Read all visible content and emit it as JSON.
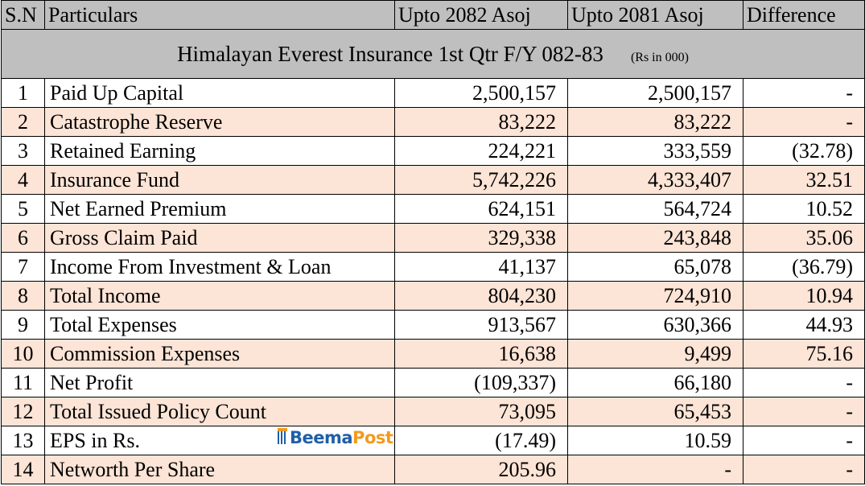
{
  "title": "Himalayan Everest Insurance 1st Qtr F/Y 082-83",
  "unit_note": "(Rs in 000)",
  "logo": [
    "Beema",
    "Post"
  ],
  "table": {
    "header": [
      "S.N",
      "Particulars",
      "Upto 2082 Asoj",
      "Upto 2081 Asoj",
      "Difference"
    ],
    "rows": [
      [
        "1",
        "Paid Up Capital",
        "2,500,157",
        "2,500,157",
        "-"
      ],
      [
        "2",
        "Catastrophe Reserve",
        "83,222",
        "83,222",
        "-"
      ],
      [
        "3",
        "Retained Earning",
        "224,221",
        "333,559",
        "(32.78)"
      ],
      [
        "4",
        "Insurance Fund",
        "5,742,226",
        "4,333,407",
        "32.51"
      ],
      [
        "5",
        "Net Earned Premium",
        "624,151",
        "564,724",
        "10.52"
      ],
      [
        "6",
        "Gross Claim Paid",
        "329,338",
        "243,848",
        "35.06"
      ],
      [
        "7",
        "Income From Investment & Loan",
        "41,137",
        "65,078",
        "(36.79)"
      ],
      [
        "8",
        "Total Income",
        "804,230",
        "724,910",
        "10.94"
      ],
      [
        "9",
        "Total Expenses",
        "913,567",
        "630,366",
        "44.93"
      ],
      [
        "10",
        "Commission Expenses",
        "16,638",
        "9,499",
        "75.16"
      ],
      [
        "11",
        "Net Profit",
        "(109,337)",
        "66,180",
        "-"
      ],
      [
        "12",
        "Total Issued Policy Count",
        "73,095",
        "65,453",
        "-"
      ],
      [
        "13",
        "EPS in Rs.",
        "(17.49)",
        "10.59",
        "-"
      ],
      [
        "14",
        "Networth Per Share",
        "205.96",
        "-",
        "-"
      ]
    ]
  }
}
